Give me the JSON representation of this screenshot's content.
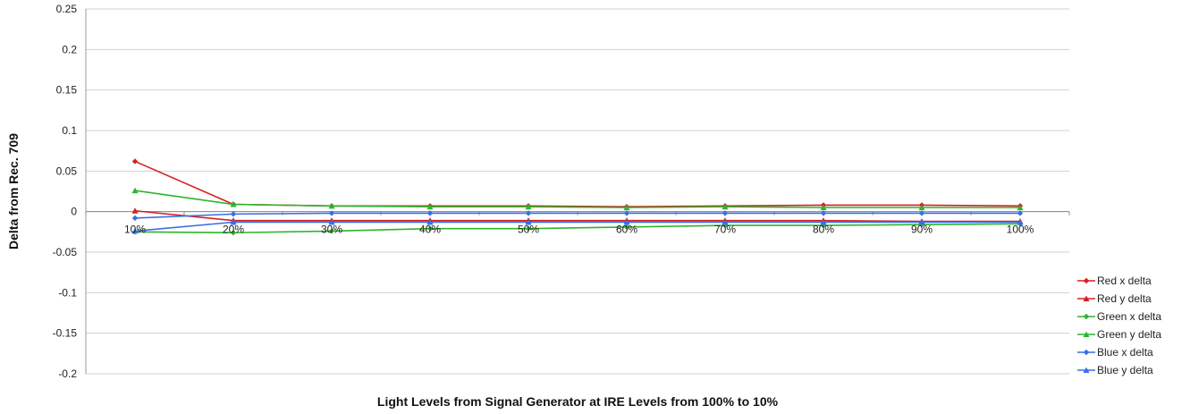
{
  "chart_data": {
    "type": "line",
    "title": "",
    "xlabel": "Light Levels from Signal Generator at IRE Levels from 100% to 10%",
    "ylabel": "Delta from Rec. 709",
    "categories": [
      "10%",
      "20%",
      "30%",
      "40%",
      "50%",
      "60%",
      "70%",
      "80%",
      "90%",
      "100%"
    ],
    "ylim": [
      -0.2,
      0.25
    ],
    "yticks": [
      -0.2,
      -0.15,
      -0.1,
      -0.05,
      0,
      0.05,
      0.1,
      0.15,
      0.2,
      0.25
    ],
    "ytick_labels": [
      "-0.2",
      "-0.15",
      "-0.1",
      "-0.05",
      "0",
      "0.05",
      "0.1",
      "0.15",
      "0.2",
      "0.25"
    ],
    "grid": true,
    "legend_position": "right",
    "series": [
      {
        "name": "Red x delta",
        "color": "#d42020",
        "marker": "diamond",
        "values": [
          0.062,
          0.009,
          0.007,
          0.007,
          0.007,
          0.006,
          0.007,
          0.008,
          0.008,
          0.007
        ]
      },
      {
        "name": "Red y delta",
        "color": "#d42020",
        "marker": "triangle",
        "values": [
          0.001,
          -0.011,
          -0.011,
          -0.011,
          -0.011,
          -0.011,
          -0.011,
          -0.011,
          -0.012,
          -0.012
        ]
      },
      {
        "name": "Green x delta",
        "color": "#2db52d",
        "marker": "diamond",
        "values": [
          -0.025,
          -0.026,
          -0.024,
          -0.021,
          -0.021,
          -0.019,
          -0.017,
          -0.017,
          -0.016,
          -0.015
        ]
      },
      {
        "name": "Green y delta",
        "color": "#2db52d",
        "marker": "triangle",
        "values": [
          0.026,
          0.009,
          0.007,
          0.006,
          0.006,
          0.005,
          0.006,
          0.005,
          0.005,
          0.005
        ]
      },
      {
        "name": "Blue x delta",
        "color": "#3a6ee8",
        "marker": "diamond",
        "values": [
          -0.008,
          -0.003,
          -0.002,
          -0.002,
          -0.002,
          -0.002,
          -0.002,
          -0.002,
          -0.002,
          -0.002
        ]
      },
      {
        "name": "Blue y delta",
        "color": "#3a6ee8",
        "marker": "triangle",
        "values": [
          -0.024,
          -0.013,
          -0.013,
          -0.013,
          -0.013,
          -0.013,
          -0.013,
          -0.013,
          -0.013,
          -0.013
        ]
      }
    ]
  }
}
